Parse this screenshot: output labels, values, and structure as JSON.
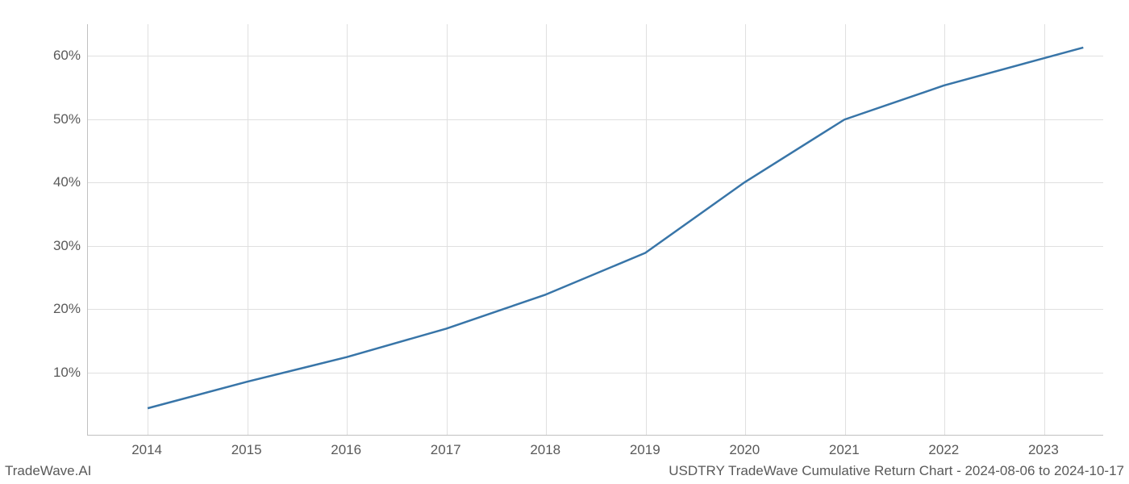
{
  "chart": {
    "type": "line",
    "background_color": "#ffffff",
    "grid_color": "#e0e0e0",
    "axis_color": "#c0c0c0",
    "text_color": "#595959",
    "line_color": "#3875a8",
    "line_width": 2.5,
    "x_categories": [
      "2014",
      "2015",
      "2016",
      "2017",
      "2018",
      "2019",
      "2020",
      "2021",
      "2022",
      "2023"
    ],
    "x_values": [
      2014,
      2015,
      2016,
      2017,
      2018,
      2019,
      2020,
      2021,
      2022,
      2023
    ],
    "x_extra_end": 2023.4,
    "y_values": [
      4.2,
      8.4,
      12.3,
      16.8,
      22.2,
      28.8,
      40.0,
      49.9,
      55.3,
      59.6
    ],
    "y_extra_end": 61.3,
    "xlim": [
      2013.4,
      2023.6
    ],
    "ylim": [
      0,
      65
    ],
    "yticks": [
      10,
      20,
      30,
      40,
      50,
      60
    ],
    "ytick_labels": [
      "10%",
      "20%",
      "30%",
      "40%",
      "50%",
      "60%"
    ],
    "tick_fontsize": 17
  },
  "footer": {
    "left": "TradeWave.AI",
    "right": "USDTRY TradeWave Cumulative Return Chart - 2024-08-06 to 2024-10-17",
    "fontsize": 17
  }
}
